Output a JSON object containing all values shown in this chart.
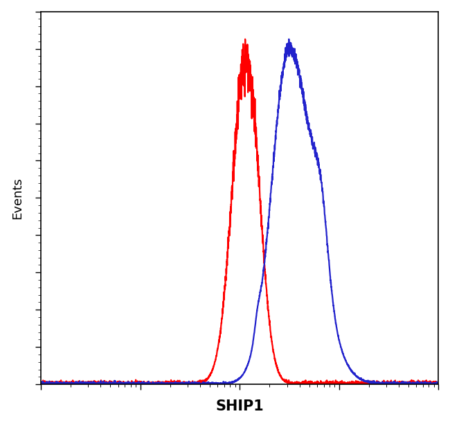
{
  "title": "",
  "xlabel": "SHIP1",
  "ylabel": "Events",
  "xlabel_fontsize": 15,
  "ylabel_fontsize": 13,
  "xlabel_fontweight": "bold",
  "background_color": "#ffffff",
  "plot_bg_color": "#ffffff",
  "red_color": "#ff0000",
  "blue_color": "#2222cc",
  "line_width": 1.6,
  "x_min": 1.0,
  "x_max": 10000.0,
  "y_min": 0.0,
  "y_max": 1.08
}
